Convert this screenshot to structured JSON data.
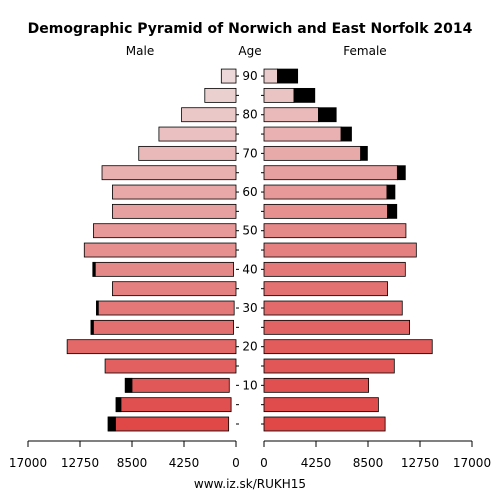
{
  "chart_data": {
    "type": "bar",
    "title": "Demographic Pyramid of Norwich and East Norfolk 2014",
    "left_label": "Male",
    "center_label": "Age",
    "right_label": "Female",
    "source": "www.iz.sk/RUKH15",
    "x_ticks_left": [
      "17000",
      "12750",
      "8500",
      "4250",
      "0"
    ],
    "x_ticks_right": [
      "0",
      "4250",
      "8500",
      "12750",
      "17000"
    ],
    "x_tick_values": [
      17000,
      12750,
      8500,
      4250,
      0
    ],
    "age_ticks": [
      "10",
      "20",
      "30",
      "40",
      "50",
      "60",
      "70",
      "80",
      "90"
    ],
    "age_tick_values": [
      10,
      20,
      30,
      40,
      50,
      60,
      70,
      80,
      90
    ],
    "xlim": [
      0,
      17000
    ],
    "age_groups": [
      0,
      5,
      10,
      15,
      20,
      25,
      30,
      35,
      40,
      45,
      50,
      55,
      60,
      65,
      70,
      75,
      80,
      85,
      90
    ],
    "male": {
      "total": [
        10450,
        9800,
        9050,
        10700,
        13800,
        11850,
        11400,
        10100,
        11700,
        12400,
        11650,
        10100,
        10100,
        10950,
        7950,
        6300,
        4450,
        2550,
        1200
      ],
      "excess": [
        600,
        400,
        550,
        0,
        0,
        200,
        150,
        0,
        200,
        0,
        0,
        0,
        0,
        0,
        0,
        0,
        0,
        0,
        0
      ]
    },
    "female": {
      "total": [
        9900,
        9350,
        8550,
        10650,
        13750,
        11900,
        11300,
        10100,
        11550,
        12450,
        11600,
        10850,
        10700,
        11550,
        8450,
        7150,
        5900,
        4150,
        2750
      ],
      "excess": [
        0,
        0,
        0,
        0,
        0,
        0,
        0,
        0,
        0,
        0,
        0,
        750,
        650,
        650,
        550,
        850,
        1450,
        1700,
        1650
      ]
    },
    "palette": {
      "low": "#e04848",
      "high": "#ecd8d8",
      "excess": "#000000"
    }
  }
}
